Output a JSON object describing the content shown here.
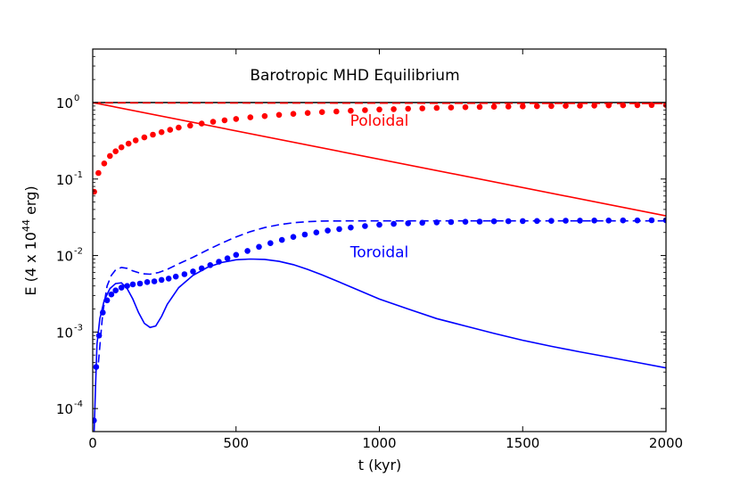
{
  "chart_data": {
    "type": "line",
    "title": "Barotropic MHD Equilibrium",
    "xlabel": "t (kyr)",
    "ylabel": {
      "prefix": "E (4 x 10",
      "exponent": "44",
      "suffix": " erg)"
    },
    "xlim": [
      0,
      2000
    ],
    "ylim": [
      5e-05,
      5
    ],
    "yscale": "log",
    "x_ticks": [
      {
        "value": 0,
        "label": "0"
      },
      {
        "value": 500,
        "label": "500"
      },
      {
        "value": 1000,
        "label": "1000"
      },
      {
        "value": 1500,
        "label": "1500"
      },
      {
        "value": 2000,
        "label": "2000"
      }
    ],
    "y_ticks": [
      {
        "value": 1,
        "base": "10",
        "exp": "0"
      },
      {
        "value": 0.1,
        "base": "10",
        "exp": "-1"
      },
      {
        "value": 0.01,
        "base": "10",
        "exp": "-2"
      },
      {
        "value": 0.001,
        "base": "10",
        "exp": "-3"
      },
      {
        "value": 0.0001,
        "base": "10",
        "exp": "-4"
      }
    ],
    "annotations": [
      {
        "text": "Poloidal",
        "x": 1000,
        "y": 0.5,
        "color": "#ff0000"
      },
      {
        "text": "Toroidal",
        "x": 1000,
        "y": 0.0095,
        "color": "#0000ff"
      }
    ],
    "series": [
      {
        "name": "total-solid",
        "color": "#000000",
        "style": "solid",
        "x": [
          0,
          500,
          1000,
          1500,
          2000
        ],
        "y": [
          1,
          1,
          1,
          1,
          1
        ]
      },
      {
        "name": "total-dashed",
        "color": "#000000",
        "style": "dashed",
        "x": [
          0,
          500,
          1000,
          1500,
          2000
        ],
        "y": [
          0.99,
          0.99,
          0.99,
          0.99,
          0.99
        ]
      },
      {
        "name": "poloidal-solid",
        "color": "#ff0000",
        "style": "solid",
        "x": [
          0,
          2000
        ],
        "y": [
          1,
          0.033
        ]
      },
      {
        "name": "poloidal-dashed",
        "color": "#ff0000",
        "style": "dashed",
        "x": [
          0,
          500,
          1000,
          1500,
          2000
        ],
        "y": [
          0.99,
          0.985,
          0.98,
          0.975,
          0.97
        ]
      },
      {
        "name": "poloidal-dots",
        "color": "#ff0000",
        "style": "dots",
        "x": [
          5,
          20,
          40,
          60,
          80,
          100,
          125,
          150,
          180,
          210,
          240,
          270,
          300,
          340,
          380,
          420,
          460,
          500,
          550,
          600,
          650,
          700,
          750,
          800,
          850,
          900,
          950,
          1000,
          1050,
          1100,
          1150,
          1200,
          1250,
          1300,
          1350,
          1400,
          1450,
          1500,
          1550,
          1600,
          1650,
          1700,
          1750,
          1800,
          1850,
          1900,
          1950,
          2000
        ],
        "y": [
          0.068,
          0.12,
          0.16,
          0.2,
          0.23,
          0.26,
          0.29,
          0.32,
          0.35,
          0.38,
          0.41,
          0.44,
          0.47,
          0.5,
          0.53,
          0.56,
          0.585,
          0.61,
          0.64,
          0.665,
          0.69,
          0.71,
          0.73,
          0.75,
          0.765,
          0.78,
          0.795,
          0.81,
          0.82,
          0.83,
          0.84,
          0.85,
          0.86,
          0.87,
          0.875,
          0.88,
          0.885,
          0.89,
          0.895,
          0.9,
          0.905,
          0.91,
          0.913,
          0.916,
          0.92,
          0.925,
          0.928,
          0.93
        ]
      },
      {
        "name": "toroidal-solid",
        "color": "#0000ff",
        "style": "solid",
        "x": [
          5,
          10,
          15,
          25,
          40,
          60,
          80,
          100,
          120,
          140,
          160,
          180,
          200,
          220,
          240,
          260,
          300,
          350,
          400,
          450,
          500,
          550,
          600,
          650,
          700,
          750,
          800,
          900,
          1000,
          1100,
          1200,
          1300,
          1400,
          1500,
          1600,
          1700,
          1800,
          1900,
          2000
        ],
        "y": [
          5e-05,
          0.0002,
          0.0007,
          0.0015,
          0.0026,
          0.0037,
          0.0043,
          0.0044,
          0.0037,
          0.0027,
          0.0018,
          0.0013,
          0.00115,
          0.0012,
          0.0016,
          0.0023,
          0.0038,
          0.0055,
          0.007,
          0.0081,
          0.0088,
          0.009,
          0.0089,
          0.0084,
          0.0076,
          0.0066,
          0.0056,
          0.0039,
          0.0027,
          0.002,
          0.0015,
          0.0012,
          0.00096,
          0.00078,
          0.00065,
          0.00055,
          0.00047,
          0.0004,
          0.00034
        ]
      },
      {
        "name": "toroidal-dashed",
        "color": "#0000ff",
        "style": "dashed",
        "x": [
          20,
          35,
          50,
          65,
          80,
          100,
          120,
          140,
          170,
          200,
          230,
          260,
          300,
          350,
          400,
          450,
          500,
          550,
          600,
          650,
          700,
          750,
          800,
          900,
          1000,
          1100,
          1200,
          1300,
          1400,
          1500,
          1600,
          1700,
          1800,
          1900,
          2000
        ],
        "y": [
          0.0004,
          0.0018,
          0.004,
          0.0055,
          0.0065,
          0.007,
          0.0068,
          0.0063,
          0.0058,
          0.0057,
          0.006,
          0.0066,
          0.0078,
          0.0095,
          0.0118,
          0.0145,
          0.0175,
          0.0205,
          0.0232,
          0.0253,
          0.0268,
          0.0277,
          0.0282,
          0.0284,
          0.0284,
          0.0284,
          0.0284,
          0.0284,
          0.0284,
          0.0284,
          0.0284,
          0.0284,
          0.0284,
          0.0284,
          0.0284
        ]
      },
      {
        "name": "toroidal-dots",
        "color": "#0000ff",
        "style": "dots",
        "x": [
          4,
          12,
          22,
          35,
          50,
          65,
          80,
          100,
          120,
          140,
          165,
          190,
          215,
          240,
          265,
          290,
          320,
          350,
          380,
          410,
          440,
          470,
          500,
          540,
          580,
          620,
          660,
          700,
          740,
          780,
          820,
          860,
          900,
          950,
          1000,
          1050,
          1100,
          1150,
          1200,
          1250,
          1300,
          1350,
          1400,
          1450,
          1500,
          1550,
          1600,
          1650,
          1700,
          1750,
          1800,
          1850,
          1900,
          1950,
          2000
        ],
        "y": [
          7e-05,
          0.00035,
          0.0009,
          0.0018,
          0.0026,
          0.0031,
          0.0035,
          0.0038,
          0.004,
          0.0042,
          0.0043,
          0.0045,
          0.0046,
          0.0048,
          0.005,
          0.0053,
          0.0057,
          0.0062,
          0.0068,
          0.0075,
          0.0083,
          0.0092,
          0.0102,
          0.0115,
          0.013,
          0.0145,
          0.016,
          0.0175,
          0.0188,
          0.02,
          0.0212,
          0.0222,
          0.0232,
          0.0243,
          0.0252,
          0.0259,
          0.0264,
          0.0268,
          0.0271,
          0.0274,
          0.0276,
          0.0278,
          0.028,
          0.0281,
          0.0282,
          0.0283,
          0.0284,
          0.0285,
          0.0286,
          0.0287,
          0.0287,
          0.0288,
          0.0288,
          0.0289,
          0.0289
        ]
      }
    ]
  }
}
